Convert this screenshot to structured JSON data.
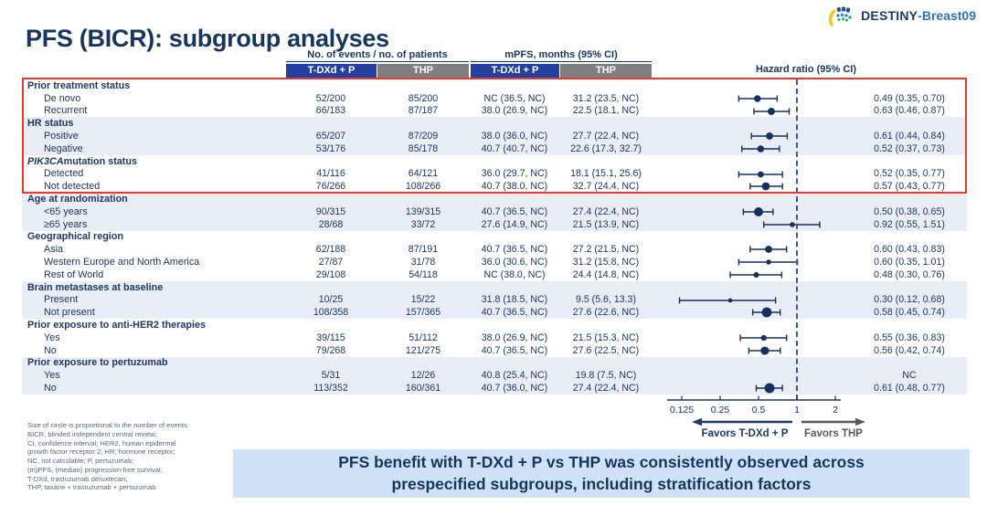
{
  "logo": {
    "study": "DESTINY",
    "suffix": "-Breast09"
  },
  "title": "PFS (BICR): subgroup analyses",
  "table": {
    "events_header": "No. of events / no. of patients",
    "mpfs_header": "mPFS, months (95% CI)",
    "hr_header": "Hazard ratio (95% CI)",
    "arm1": "T-DXd + P",
    "arm2": "THP",
    "rows": [
      {
        "type": "group",
        "label": "Prior treatment status",
        "shaded": false
      },
      {
        "type": "item",
        "label": "De novo",
        "shaded": false,
        "ev1": "52/200",
        "ev2": "85/200",
        "mpfs1": "NC (36.5, NC)",
        "mpfs2": "31.2 (23.5, NC)",
        "hr": "0.49 (0.35, 0.70)",
        "hr_val": 0.49,
        "lo": 0.35,
        "hi": 0.7,
        "events": 137
      },
      {
        "type": "item",
        "label": "Recurrent",
        "shaded": false,
        "ev1": "66/183",
        "ev2": "87/187",
        "mpfs1": "38.0 (26.9, NC)",
        "mpfs2": "22.5 (18.1, NC)",
        "hr": "0.63 (0.46, 0.87)",
        "hr_val": 0.63,
        "lo": 0.46,
        "hi": 0.87,
        "events": 153
      },
      {
        "type": "group",
        "label": "HR status",
        "shaded": true
      },
      {
        "type": "item",
        "label": "Positive",
        "shaded": true,
        "ev1": "65/207",
        "ev2": "87/209",
        "mpfs1": "38.0 (36.0, NC)",
        "mpfs2": "27.7 (22.4, NC)",
        "hr": "0.61 (0.44, 0.84)",
        "hr_val": 0.61,
        "lo": 0.44,
        "hi": 0.84,
        "events": 152
      },
      {
        "type": "item",
        "label": "Negative",
        "shaded": true,
        "ev1": "53/176",
        "ev2": "85/178",
        "mpfs1": "40.7 (40.7, NC)",
        "mpfs2": "22.6 (17.3, 32.7)",
        "hr": "0.52 (0.37, 0.73)",
        "hr_val": 0.52,
        "lo": 0.37,
        "hi": 0.73,
        "events": 138
      },
      {
        "type": "group",
        "italic": "PIK3CA",
        "label": " mutation status",
        "shaded": false
      },
      {
        "type": "item",
        "label": "Detected",
        "shaded": false,
        "ev1": "41/116",
        "ev2": "64/121",
        "mpfs1": "36.0 (29.7, NC)",
        "mpfs2": "18.1 (15.1, 25.6)",
        "hr": "0.52 (0.35, 0.77)",
        "hr_val": 0.52,
        "lo": 0.35,
        "hi": 0.77,
        "events": 105
      },
      {
        "type": "item",
        "label": "Not detected",
        "shaded": false,
        "ev1": "76/266",
        "ev2": "108/266",
        "mpfs1": "40.7 (38.0, NC)",
        "mpfs2": "32.7 (24.4, NC)",
        "hr": "0.57 (0.43, 0.77)",
        "hr_val": 0.57,
        "lo": 0.43,
        "hi": 0.77,
        "events": 184
      },
      {
        "type": "group",
        "label": "Age at randomization",
        "shaded": true
      },
      {
        "type": "item",
        "label": "<65 years",
        "shaded": true,
        "ev1": "90/315",
        "ev2": "139/315",
        "mpfs1": "40.7 (36.5, NC)",
        "mpfs2": "27.4 (22.4, NC)",
        "hr": "0.50 (0.38, 0.65)",
        "hr_val": 0.5,
        "lo": 0.38,
        "hi": 0.65,
        "events": 229
      },
      {
        "type": "item",
        "label": "≥65 years",
        "shaded": true,
        "ev1": "28/68",
        "ev2": "33/72",
        "mpfs1": "27.6 (14.9, NC)",
        "mpfs2": "21.5 (13.9, NC)",
        "hr": "0.92 (0.55, 1.51)",
        "hr_val": 0.92,
        "lo": 0.55,
        "hi": 1.51,
        "events": 61
      },
      {
        "type": "group",
        "label": "Geographical region",
        "shaded": false
      },
      {
        "type": "item",
        "label": "Asia",
        "shaded": false,
        "ev1": "62/188",
        "ev2": "87/191",
        "mpfs1": "40.7 (36.5, NC)",
        "mpfs2": "27.2 (21.5, NC)",
        "hr": "0.60 (0.43, 0.83)",
        "hr_val": 0.6,
        "lo": 0.43,
        "hi": 0.83,
        "events": 149
      },
      {
        "type": "item",
        "label": "Western Europe and North America",
        "shaded": false,
        "ev1": "27/87",
        "ev2": "31/78",
        "mpfs1": "36.0 (30.6, NC)",
        "mpfs2": "31.2 (15.8, NC)",
        "hr": "0.60 (0.35, 1.01)",
        "hr_val": 0.6,
        "lo": 0.35,
        "hi": 1.01,
        "events": 58
      },
      {
        "type": "item",
        "label": "Rest of World",
        "shaded": false,
        "ev1": "29/108",
        "ev2": "54/118",
        "mpfs1": "NC (38.0, NC)",
        "mpfs2": "24.4 (14.8, NC)",
        "hr": "0.48 (0.30, 0.76)",
        "hr_val": 0.48,
        "lo": 0.3,
        "hi": 0.76,
        "events": 83
      },
      {
        "type": "group",
        "label": "Brain metastases at baseline",
        "shaded": true
      },
      {
        "type": "item",
        "label": "Present",
        "shaded": true,
        "ev1": "10/25",
        "ev2": "15/22",
        "mpfs1": "31.8 (18.5, NC)",
        "mpfs2": "9.5 (5.6, 13.3)",
        "hr": "0.30 (0.12, 0.68)",
        "hr_val": 0.3,
        "lo": 0.12,
        "hi": 0.68,
        "events": 25
      },
      {
        "type": "item",
        "label": "Not present",
        "shaded": true,
        "ev1": "108/358",
        "ev2": "157/365",
        "mpfs1": "40.7 (36.5, NC)",
        "mpfs2": "27.6 (22.6, NC)",
        "hr": "0.58 (0.45, 0.74)",
        "hr_val": 0.58,
        "lo": 0.45,
        "hi": 0.74,
        "events": 265
      },
      {
        "type": "group",
        "label": "Prior exposure to anti-HER2 therapies",
        "shaded": false
      },
      {
        "type": "item",
        "label": "Yes",
        "shaded": false,
        "ev1": "39/115",
        "ev2": "51/112",
        "mpfs1": "38.0 (26.9, NC)",
        "mpfs2": "21.5 (15.3, NC)",
        "hr": "0.55 (0.36, 0.83)",
        "hr_val": 0.55,
        "lo": 0.36,
        "hi": 0.83,
        "events": 90
      },
      {
        "type": "item",
        "label": "No",
        "shaded": false,
        "ev1": "79/268",
        "ev2": "121/275",
        "mpfs1": "40.7 (36.5, NC)",
        "mpfs2": "27.6 (22.5, NC)",
        "hr": "0.56 (0.42, 0.74)",
        "hr_val": 0.56,
        "lo": 0.42,
        "hi": 0.74,
        "events": 200
      },
      {
        "type": "group",
        "label": "Prior exposure to pertuzumab",
        "shaded": true
      },
      {
        "type": "item",
        "label": "Yes",
        "shaded": true,
        "ev1": "5/31",
        "ev2": "12/26",
        "mpfs1": "40.8 (25.4, NC)",
        "mpfs2": "19.8 (7.5, NC)",
        "hr": "NC",
        "hr_val": null,
        "lo": null,
        "hi": null,
        "events": 17
      },
      {
        "type": "item",
        "label": "No",
        "shaded": true,
        "ev1": "113/352",
        "ev2": "160/361",
        "mpfs1": "40.7 (36.0, NC)",
        "mpfs2": "27.4 (22.4, NC)",
        "hr": "0.61 (0.48, 0.77)",
        "hr_val": 0.61,
        "lo": 0.48,
        "hi": 0.77,
        "events": 273
      }
    ]
  },
  "axis": {
    "tick_labels": [
      "0.125",
      "0.25",
      "0.5",
      "1",
      "2"
    ],
    "tick_values": [
      0.125,
      0.25,
      0.5,
      1,
      2
    ],
    "favors_left": "Favors T-DXd + P",
    "favors_right": "Favors THP"
  },
  "footnotes": [
    "Size of circle is proportional to the number of events",
    "BICR, blinded independent central review;",
    "CI, confidence interval; HER2, human epidermal",
    "growth factor receptor 2; HR, hormone receptor;",
    "NC, not calculable; P, pertuzumab;",
    "(m)PFS, (median) progression-free survival;",
    "T-DXd, trastuzumab deruxtecan;",
    "THP, taxane + trastuzumab + pertuzumab"
  ],
  "banner": {
    "text": "PFS benefit with T-DXd + P vs THP was consistently observed across prespecified subgroups, including stratification factors"
  },
  "colors": {
    "navy_text": "#1f3864",
    "band_blue": "#24409e",
    "band_gray": "#7f7f7f",
    "row_shade": "#e9edf6",
    "highlight_red": "#e8392e",
    "banner_bg": "#cfe2f6",
    "marker": "#16305f",
    "favors_thp_gray": "#595959"
  },
  "chart_data": {
    "type": "scatter",
    "title": "PFS (BICR): subgroup analyses — hazard ratio forest plot",
    "x_scale": "log",
    "x_ticks": [
      0.125,
      0.25,
      0.5,
      1,
      2
    ],
    "xlim": [
      0.1,
      2.4
    ],
    "reference_line": 1,
    "annotation_left": "Favors T-DXd + P",
    "annotation_right": "Favors THP",
    "marker_note": "Size of circle is proportional to the number of events",
    "series": [
      {
        "name": "Hazard ratio (95% CI)",
        "points": [
          {
            "subgroup": "De novo",
            "hr": 0.49,
            "ci": [
              0.35,
              0.7
            ],
            "events": 137
          },
          {
            "subgroup": "Recurrent",
            "hr": 0.63,
            "ci": [
              0.46,
              0.87
            ],
            "events": 153
          },
          {
            "subgroup": "HR positive",
            "hr": 0.61,
            "ci": [
              0.44,
              0.84
            ],
            "events": 152
          },
          {
            "subgroup": "HR negative",
            "hr": 0.52,
            "ci": [
              0.37,
              0.73
            ],
            "events": 138
          },
          {
            "subgroup": "PIK3CA detected",
            "hr": 0.52,
            "ci": [
              0.35,
              0.77
            ],
            "events": 105
          },
          {
            "subgroup": "PIK3CA not detected",
            "hr": 0.57,
            "ci": [
              0.43,
              0.77
            ],
            "events": 184
          },
          {
            "subgroup": "<65 years",
            "hr": 0.5,
            "ci": [
              0.38,
              0.65
            ],
            "events": 229
          },
          {
            "subgroup": "≥65 years",
            "hr": 0.92,
            "ci": [
              0.55,
              1.51
            ],
            "events": 61
          },
          {
            "subgroup": "Asia",
            "hr": 0.6,
            "ci": [
              0.43,
              0.83
            ],
            "events": 149
          },
          {
            "subgroup": "Western Europe and North America",
            "hr": 0.6,
            "ci": [
              0.35,
              1.01
            ],
            "events": 58
          },
          {
            "subgroup": "Rest of World",
            "hr": 0.48,
            "ci": [
              0.3,
              0.76
            ],
            "events": 83
          },
          {
            "subgroup": "Brain metastases present",
            "hr": 0.3,
            "ci": [
              0.12,
              0.68
            ],
            "events": 25
          },
          {
            "subgroup": "Brain metastases not present",
            "hr": 0.58,
            "ci": [
              0.45,
              0.74
            ],
            "events": 265
          },
          {
            "subgroup": "Prior anti-HER2 therapy: yes",
            "hr": 0.55,
            "ci": [
              0.36,
              0.83
            ],
            "events": 90
          },
          {
            "subgroup": "Prior anti-HER2 therapy: no",
            "hr": 0.56,
            "ci": [
              0.42,
              0.74
            ],
            "events": 200
          },
          {
            "subgroup": "Prior pertuzumab: yes",
            "hr": null,
            "ci": null,
            "events": 17
          },
          {
            "subgroup": "Prior pertuzumab: no",
            "hr": 0.61,
            "ci": [
              0.48,
              0.77
            ],
            "events": 273
          }
        ]
      }
    ]
  }
}
